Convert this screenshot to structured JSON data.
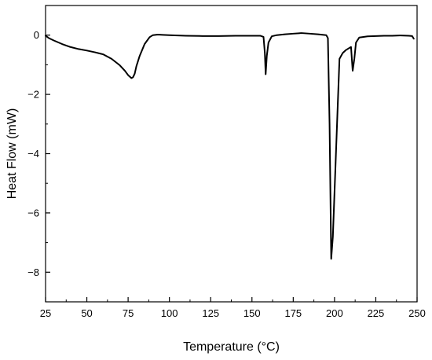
{
  "chart_data": {
    "type": "line",
    "title": "",
    "xlabel": "Temperature (°C)",
    "ylabel": "Heat Flow (mW)",
    "xlim": [
      25,
      250
    ],
    "ylim": [
      -9,
      1
    ],
    "grid": false,
    "legend": "none",
    "x_ticks": [
      25,
      50,
      75,
      100,
      125,
      150,
      175,
      200,
      225,
      250
    ],
    "x_tick_labels": [
      "25",
      "50",
      "75",
      "100",
      "125",
      "150",
      "175",
      "200",
      "225",
      "250"
    ],
    "y_ticks": [
      0,
      -2,
      -4,
      -6,
      -8
    ],
    "y_tick_labels": [
      "0",
      "−2",
      "−4",
      "−6",
      "−8"
    ],
    "series": [
      {
        "color": "#000000",
        "x": [
          25,
          27,
          30,
          35,
          40,
          45,
          50,
          55,
          60,
          65,
          70,
          73,
          75,
          77,
          78,
          79,
          80,
          82,
          85,
          88,
          90,
          93,
          96,
          100,
          110,
          120,
          130,
          140,
          150,
          155,
          157,
          157.8,
          158.3,
          159,
          160,
          162,
          165,
          170,
          175,
          180,
          185,
          190,
          195,
          196,
          197,
          198,
          199,
          200,
          201,
          202,
          203,
          205,
          207,
          210,
          211,
          212,
          213,
          215,
          220,
          225,
          230,
          235,
          240,
          245,
          247,
          248
        ],
        "y": [
          -0.02,
          -0.1,
          -0.18,
          -0.3,
          -0.4,
          -0.47,
          -0.52,
          -0.58,
          -0.65,
          -0.8,
          -1.02,
          -1.2,
          -1.35,
          -1.45,
          -1.42,
          -1.3,
          -1.05,
          -0.7,
          -0.3,
          -0.07,
          0.0,
          0.02,
          0.01,
          0.0,
          -0.02,
          -0.03,
          -0.03,
          -0.02,
          -0.02,
          -0.02,
          -0.06,
          -0.6,
          -1.32,
          -0.7,
          -0.25,
          -0.04,
          0.0,
          0.03,
          0.05,
          0.07,
          0.05,
          0.03,
          0.0,
          -0.1,
          -3.0,
          -7.55,
          -6.8,
          -5.3,
          -3.8,
          -2.3,
          -0.8,
          -0.6,
          -0.5,
          -0.4,
          -1.2,
          -0.8,
          -0.25,
          -0.08,
          -0.04,
          -0.03,
          -0.02,
          -0.02,
          -0.01,
          -0.02,
          -0.03,
          -0.12
        ]
      }
    ]
  }
}
